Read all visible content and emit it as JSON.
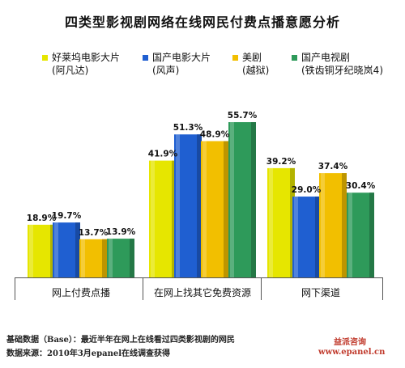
{
  "chart_data": {
    "type": "bar",
    "title": "四类型影视剧网络在线网民付费点播意愿分析",
    "xlabel": "",
    "ylabel": "",
    "ylim": [
      0,
      60
    ],
    "grid": false,
    "legend_position": "top",
    "categories": [
      "网上付费点播",
      "在网上找其它免费资源",
      "网下渠道"
    ],
    "series": [
      {
        "name": "好莱坞电影大片",
        "name_line2": "(阿凡达)",
        "color": "#e6e600",
        "values": [
          18.9,
          41.9,
          39.2
        ],
        "labels": [
          "18.9%",
          "41.9%",
          "39.2%"
        ]
      },
      {
        "name": "国产电影大片",
        "name_line2": "(风声)",
        "color": "#1f5fd1",
        "values": [
          19.7,
          51.3,
          29.0
        ],
        "labels": [
          "19.7%",
          "51.3%",
          "29.0%"
        ]
      },
      {
        "name": "美剧",
        "name_line2": "(越狱)",
        "color": "#f2bf00",
        "values": [
          13.7,
          48.9,
          37.4
        ],
        "labels": [
          "13.7%",
          "48.9%",
          "37.4%"
        ]
      },
      {
        "name": "国产电视剧",
        "name_line2": "(铁齿铜牙纪晓岚4)",
        "color": "#2e9a5a",
        "values": [
          13.9,
          55.7,
          30.4
        ],
        "labels": [
          "13.9%",
          "55.7%",
          "30.4%"
        ]
      }
    ]
  },
  "footer": {
    "base_note": "基础数据（Base）：最近半年在网上在线看过四类影视剧的网民",
    "source_note": "数据来源：2010年3月epanel在线调查获得"
  },
  "brand": {
    "name": "益派咨询",
    "url": "www.epanel.cn"
  }
}
